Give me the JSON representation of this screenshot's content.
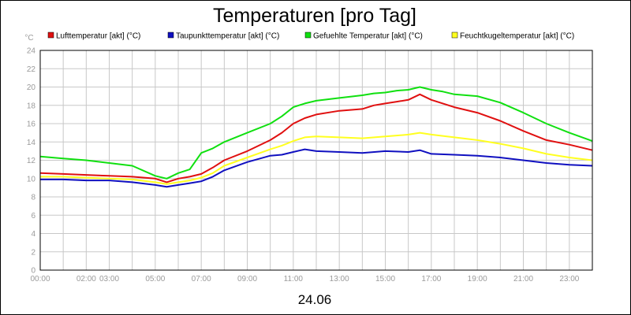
{
  "chart_data": {
    "type": "line",
    "title": "Temperaturen [pro Tag]",
    "unit_label": "°C",
    "date_label": "24.06",
    "ylim": [
      0,
      24
    ],
    "y_ticks": [
      0,
      2,
      4,
      6,
      8,
      10,
      12,
      14,
      16,
      18,
      20,
      22,
      24
    ],
    "xlim": [
      0,
      24
    ],
    "x_ticks": [
      {
        "hour": 0,
        "label": "00:00"
      },
      {
        "hour": 2,
        "label": "02:00"
      },
      {
        "hour": 3,
        "label": "03:00"
      },
      {
        "hour": 5,
        "label": "05:00"
      },
      {
        "hour": 7,
        "label": "07:00"
      },
      {
        "hour": 9,
        "label": "09:00"
      },
      {
        "hour": 11,
        "label": "11:00"
      },
      {
        "hour": 13,
        "label": "13:00"
      },
      {
        "hour": 15,
        "label": "15:00"
      },
      {
        "hour": 17,
        "label": "17:00"
      },
      {
        "hour": 19,
        "label": "19:00"
      },
      {
        "hour": 21,
        "label": "21:00"
      },
      {
        "hour": 23,
        "label": "23:00"
      }
    ],
    "grid_x_hours": [
      0,
      1,
      2,
      3,
      4,
      5,
      6,
      7,
      8,
      9,
      10,
      11,
      12,
      13,
      14,
      15,
      16,
      17,
      18,
      19,
      20,
      21,
      22,
      23,
      24
    ],
    "series": [
      {
        "name": "Lufttemperatur [akt] (°C)",
        "color": "#e01010",
        "x": [
          0,
          1,
          2,
          3,
          4,
          5,
          5.5,
          6,
          6.5,
          7,
          7.5,
          8,
          9,
          10,
          10.5,
          11,
          11.5,
          12,
          13,
          14,
          14.5,
          15,
          15.5,
          16,
          16.5,
          17,
          17.5,
          18,
          19,
          20,
          21,
          22,
          23,
          24
        ],
        "values": [
          10.6,
          10.5,
          10.4,
          10.3,
          10.2,
          10.0,
          9.6,
          10.0,
          10.2,
          10.5,
          11.2,
          12.0,
          13.0,
          14.2,
          15.0,
          16.0,
          16.6,
          17.0,
          17.4,
          17.6,
          18.0,
          18.2,
          18.4,
          18.6,
          19.2,
          18.6,
          18.2,
          17.8,
          17.2,
          16.3,
          15.2,
          14.2,
          13.7,
          13.1
        ]
      },
      {
        "name": "Taupunkttemperatur [akt] (°C)",
        "color": "#1010c0",
        "x": [
          0,
          1,
          2,
          3,
          4,
          5,
          5.5,
          6,
          6.5,
          7,
          7.5,
          8,
          9,
          10,
          10.5,
          11,
          11.5,
          12,
          13,
          14,
          15,
          16,
          16.5,
          17,
          18,
          19,
          20,
          21,
          22,
          23,
          24
        ],
        "values": [
          9.9,
          9.9,
          9.8,
          9.8,
          9.6,
          9.3,
          9.1,
          9.3,
          9.5,
          9.7,
          10.2,
          10.9,
          11.8,
          12.5,
          12.6,
          12.9,
          13.2,
          13.0,
          12.9,
          12.8,
          13.0,
          12.9,
          13.1,
          12.7,
          12.6,
          12.5,
          12.3,
          12.0,
          11.7,
          11.5,
          11.4
        ]
      },
      {
        "name": "Gefuehlte Temperatur [akt] (°C)",
        "color": "#10e010",
        "x": [
          0,
          1,
          2,
          3,
          4,
          5,
          5.5,
          6,
          6.5,
          7,
          7.5,
          8,
          9,
          10,
          10.5,
          11,
          11.5,
          12,
          13,
          14,
          14.5,
          15,
          15.5,
          16,
          16.5,
          17,
          17.5,
          18,
          19,
          20,
          21,
          22,
          23,
          24
        ],
        "values": [
          12.4,
          12.2,
          12.0,
          11.7,
          11.4,
          10.3,
          10.0,
          10.6,
          11.0,
          12.8,
          13.3,
          14.0,
          15.0,
          16.0,
          16.8,
          17.8,
          18.2,
          18.5,
          18.8,
          19.1,
          19.3,
          19.4,
          19.6,
          19.7,
          20.0,
          19.7,
          19.5,
          19.2,
          19.0,
          18.3,
          17.2,
          16.0,
          15.0,
          14.1
        ]
      },
      {
        "name": "Feuchtkugeltemperatur [akt] (°C)",
        "color": "#ffff20",
        "x": [
          0,
          1,
          2,
          3,
          4,
          5,
          5.5,
          6,
          6.5,
          7,
          7.5,
          8,
          9,
          10,
          10.5,
          11,
          11.5,
          12,
          13,
          14,
          15,
          16,
          16.5,
          17,
          18,
          19,
          20,
          21,
          22,
          23,
          24
        ],
        "values": [
          10.2,
          10.2,
          10.1,
          10.0,
          9.9,
          9.6,
          9.4,
          9.6,
          9.8,
          10.1,
          10.6,
          11.4,
          12.3,
          13.2,
          13.6,
          14.1,
          14.5,
          14.6,
          14.5,
          14.4,
          14.6,
          14.8,
          15.0,
          14.8,
          14.5,
          14.2,
          13.8,
          13.3,
          12.7,
          12.3,
          12.0
        ]
      }
    ]
  }
}
